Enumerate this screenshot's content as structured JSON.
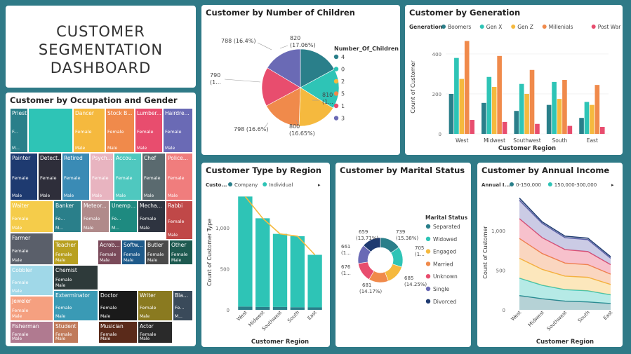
{
  "dashboard_title": [
    "CUSTOMER",
    "SEGMENTATION",
    "DASHBOARD"
  ],
  "colors": {
    "teal_dark": "#2a7f8a",
    "teal": "#2ec4b6",
    "yellow": "#f5b93e",
    "orange": "#f08a4b",
    "pink": "#e84d6e",
    "purple": "#6a6ab5",
    "navy": "#1e3a70"
  },
  "occupation": {
    "title": "Customer by Occupation and Gender",
    "tiles": [
      {
        "label": "Priest",
        "sub": [
          "F...",
          "M..."
        ],
        "color": "#2a7f8a"
      },
      {
        "label": "",
        "color": "#2ec4b6"
      },
      {
        "label": "Dancer",
        "sub": [
          "Female",
          "Male"
        ],
        "color": "#f5b93e"
      },
      {
        "label": "Stock B...",
        "sub": [
          "Female",
          "Male"
        ],
        "color": "#f08a4b"
      },
      {
        "label": "Lumber...",
        "sub": [
          "Female",
          "Male"
        ],
        "color": "#e84d6e"
      },
      {
        "label": "Hairdre...",
        "sub": [
          "Female",
          "Male"
        ],
        "color": "#6a6ab5"
      },
      {
        "label": "Painter",
        "sub": [
          "Female",
          "Male"
        ],
        "color": "#1e3a70"
      },
      {
        "label": "Detect...",
        "sub": [
          "Female",
          "Male"
        ],
        "color": "#2e2e3a"
      },
      {
        "label": "Retired",
        "sub": [
          "Female",
          "Male"
        ],
        "color": "#3a8bb5"
      },
      {
        "label": "Psych...",
        "sub": [
          "Female",
          "Male"
        ],
        "color": "#e8b4c0"
      },
      {
        "label": "Accou...",
        "sub": [
          "Female",
          "Male"
        ],
        "color": "#4fc8bf"
      },
      {
        "label": "Chef",
        "sub": [
          "Female",
          "Male"
        ],
        "color": "#5a6a6f"
      },
      {
        "label": "Police...",
        "sub": [
          "Female",
          "Male"
        ],
        "color": "#f07d7d"
      },
      {
        "label": "Waiter",
        "sub": [
          "Female",
          "Male"
        ],
        "color": "#f5cc4a"
      },
      {
        "label": "Banker",
        "sub": [
          "Fe...",
          "M..."
        ],
        "color": "#2a7f8a"
      },
      {
        "label": "Meteor...",
        "sub": [
          "Female",
          "Male"
        ],
        "color": "#b08a8a"
      },
      {
        "label": "Unemp...",
        "sub": [
          "Fe...",
          "M..."
        ],
        "color": "#1e8a80"
      },
      {
        "label": "Mecha...",
        "sub": [
          "Female",
          "Male"
        ],
        "color": "#2e3440"
      },
      {
        "label": "Rabbi",
        "sub": [
          "Female",
          "Male"
        ],
        "color": "#c04848"
      },
      {
        "label": "Farmer",
        "sub": [
          "Female",
          "Male"
        ],
        "color": "#5a5f6a"
      },
      {
        "label": "Teacher",
        "sub": [
          "Female",
          "Male"
        ],
        "color": "#b8a020"
      },
      {
        "label": "Acrob...",
        "sub": [
          "Female",
          "Male"
        ],
        "color": "#7a4a5a"
      },
      {
        "label": "Softw...",
        "sub": [
          "Female",
          "Male"
        ],
        "color": "#1e5a8a"
      },
      {
        "label": "Butler",
        "sub": [
          "Female",
          "Male"
        ],
        "color": "#4a4a4a"
      },
      {
        "label": "Other",
        "sub": [
          "Female",
          "Male"
        ],
        "color": "#1e5a50"
      },
      {
        "label": "Cobbler",
        "sub": [
          "Female",
          "Male"
        ],
        "color": "#a0d8e8"
      },
      {
        "label": "Chemist",
        "sub": [
          "Female",
          "Male"
        ],
        "color": "#2e3a3a"
      },
      {
        "label": "Jeweler",
        "sub": [
          "Female",
          "Male"
        ],
        "color": "#f5a080"
      },
      {
        "label": "Exterminator",
        "sub": [
          "Female",
          "Male"
        ],
        "color": "#3a9ab5"
      },
      {
        "label": "Doctor",
        "sub": [
          "Female",
          "Male"
        ],
        "color": "#1a1a1a"
      },
      {
        "label": "Writer",
        "sub": [
          "Female",
          "Male"
        ],
        "color": "#8a7a20"
      },
      {
        "label": "Bla...",
        "sub": [
          "Fe...",
          "M..."
        ],
        "color": "#3a4a5a"
      },
      {
        "label": "Fisherman",
        "sub": [
          "Female",
          "Male"
        ],
        "color": "#b07a90"
      },
      {
        "label": "Student",
        "sub": [
          "Female",
          "Male"
        ],
        "color": "#c07a5a"
      },
      {
        "label": "Musician",
        "sub": [
          "Female",
          "Male"
        ],
        "color": "#5a2a1a"
      },
      {
        "label": "Actor",
        "sub": [
          "Female",
          "Male"
        ],
        "color": "#2a2a2a"
      }
    ]
  },
  "children": {
    "title": "Customer by Number of Children",
    "legend_title": "Number_Of_Children",
    "slice_labels": [
      "820",
      "(17.06%)",
      "810",
      "(1...",
      "800",
      "(16.65%)",
      "798 (16.6%)",
      "790",
      "(1...",
      "788 (16.4%)"
    ],
    "chart_data": {
      "type": "pie",
      "slices": [
        {
          "name": "4",
          "value": 820,
          "color": "#2a7f8a"
        },
        {
          "name": "0",
          "value": 810,
          "color": "#2ec4b6"
        },
        {
          "name": "2",
          "value": 800,
          "color": "#f5b93e"
        },
        {
          "name": "5",
          "value": 798,
          "color": "#f08a4b"
        },
        {
          "name": "1",
          "value": 790,
          "color": "#e84d6e"
        },
        {
          "name": "3",
          "value": 788,
          "color": "#6a6ab5"
        }
      ]
    }
  },
  "generation": {
    "title": "Customer by Generation",
    "legend_title": "Generation",
    "chart_data": {
      "type": "bar",
      "categories": [
        "West",
        "Midwest",
        "Southwest",
        "South",
        "East"
      ],
      "xlabel": "Customer Region",
      "ylabel": "Count of Customer",
      "ylim": [
        0,
        470
      ],
      "yticks": [
        0,
        200,
        400
      ],
      "series": [
        {
          "name": "Boomers",
          "color": "#2a7f8a",
          "values": [
            200,
            155,
            115,
            145,
            80
          ]
        },
        {
          "name": "Gen X",
          "color": "#2ec4b6",
          "values": [
            380,
            285,
            250,
            260,
            160
          ]
        },
        {
          "name": "Gen Z",
          "color": "#f5b93e",
          "values": [
            275,
            235,
            200,
            175,
            145
          ]
        },
        {
          "name": "Millenials",
          "color": "#f08a4b",
          "values": [
            465,
            390,
            320,
            270,
            245
          ]
        },
        {
          "name": "Post War",
          "color": "#e84d6e",
          "values": [
            70,
            60,
            50,
            40,
            35
          ]
        }
      ]
    }
  },
  "customer_type": {
    "title": "Customer Type by Region",
    "legend_title": "Custo...",
    "arrow": "▸",
    "chart_data": {
      "type": "bar",
      "categories": [
        "West",
        "Midwest",
        "Southwest",
        "South",
        "East"
      ],
      "xlabel": "Customer Region",
      "ylabel": "Count of Customer Type",
      "ylim": [
        0,
        1400
      ],
      "yticks": [
        0,
        500,
        1000
      ],
      "ytick_labels": [
        "0",
        "500",
        "1,000"
      ],
      "series": [
        {
          "name": "Company",
          "color": "#2a7f8a",
          "values": [
            40,
            35,
            35,
            32,
            30
          ]
        },
        {
          "name": "Individual",
          "color": "#2ec4b6",
          "values": [
            1340,
            1080,
            890,
            865,
            640
          ]
        }
      ],
      "trend_color": "#f5b93e"
    }
  },
  "marital": {
    "title": "Customer by Marital Status",
    "legend_title": "Marital Status",
    "slice_labels": [
      "739",
      "(15.38%)",
      "705",
      "(1...",
      "685",
      "(14.25%)",
      "681",
      "(14.17%)",
      "676",
      "(1...",
      "661",
      "(1...",
      "659",
      "(13.71%)"
    ],
    "chart_data": {
      "type": "pie",
      "donut": true,
      "slices": [
        {
          "name": "Separated",
          "value": 739,
          "color": "#2a7f8a"
        },
        {
          "name": "Widowed",
          "value": 705,
          "color": "#2ec4b6"
        },
        {
          "name": "Engaged",
          "value": 685,
          "color": "#f5b93e"
        },
        {
          "name": "Married",
          "value": 681,
          "color": "#f08a4b"
        },
        {
          "name": "Unknown",
          "value": 676,
          "color": "#e84d6e"
        },
        {
          "name": "Single",
          "value": 661,
          "color": "#6a6ab5"
        },
        {
          "name": "Divorced",
          "value": 659,
          "color": "#1e3a70"
        }
      ]
    }
  },
  "income": {
    "title": "Customer by Annual Income",
    "legend_title": "Annual I...",
    "legend_items": [
      "0-150,000",
      "150,000-300,000"
    ],
    "arrow": "▸",
    "chart_data": {
      "type": "area",
      "stacked": true,
      "categories": [
        "West",
        "Midwest",
        "Southwest",
        "South",
        "East"
      ],
      "xlabel": "Customer Region",
      "ylabel": "Count of Customer",
      "ylim": [
        0,
        1450
      ],
      "yticks": [
        0,
        500,
        1000
      ],
      "ytick_labels": [
        "0",
        "500",
        "1,000"
      ],
      "series": [
        {
          "name": "0-150,000",
          "color": "#2a7f8a",
          "values": [
            180,
            140,
            110,
            100,
            80
          ]
        },
        {
          "name": "150,000-300,000",
          "color": "#2ec4b6",
          "values": [
            220,
            170,
            145,
            140,
            110
          ]
        },
        {
          "name": "",
          "color": "#f5b93e",
          "values": [
            250,
            200,
            170,
            170,
            130
          ]
        },
        {
          "name": "",
          "color": "#f08a4b",
          "values": [
            250,
            200,
            165,
            160,
            130
          ]
        },
        {
          "name": "",
          "color": "#e84d6e",
          "values": [
            250,
            200,
            170,
            165,
            120
          ]
        },
        {
          "name": "",
          "color": "#6a6ab5",
          "values": [
            230,
            180,
            150,
            150,
            80
          ]
        },
        {
          "name": "",
          "color": "#1e3a70",
          "values": [
            30,
            20,
            20,
            20,
            20
          ]
        }
      ]
    }
  }
}
